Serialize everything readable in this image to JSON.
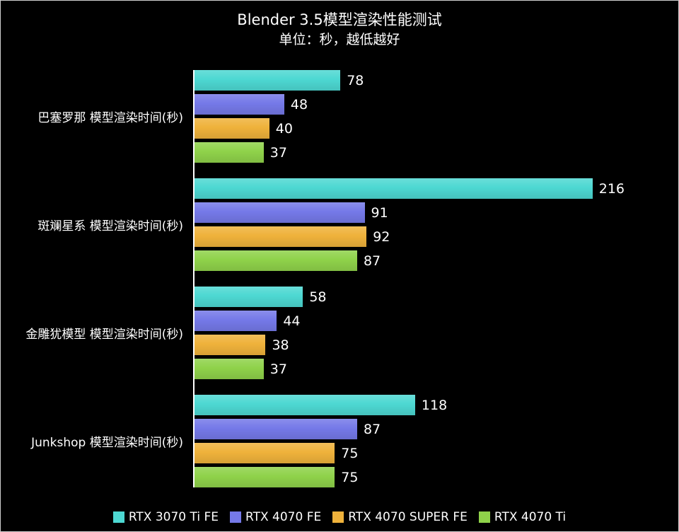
{
  "chart_data": {
    "type": "bar",
    "orientation": "horizontal",
    "title": "Blender 3.5模型渲染性能测试",
    "subtitle": "单位：秒，越低越好",
    "categories": [
      "巴塞罗那 模型渲染时间(秒)",
      "斑斓星系 模型渲染时间(秒)",
      "金雕犹模型 模型渲染时间(秒)",
      "Junkshop 模型渲染时间(秒)"
    ],
    "series": [
      {
        "name": "RTX 3070 Ti FE",
        "color": "#4dd8d2",
        "values": [
          78,
          216,
          58,
          118
        ]
      },
      {
        "name": "RTX 4070 FE",
        "color": "#7579e8",
        "values": [
          48,
          91,
          44,
          87
        ]
      },
      {
        "name": "RTX 4070 SUPER FE",
        "color": "#efb23b",
        "values": [
          40,
          92,
          38,
          75
        ]
      },
      {
        "name": "RTX 4070 Ti",
        "color": "#8fd24a",
        "values": [
          37,
          87,
          37,
          75
        ]
      }
    ],
    "xlim": [
      0,
      230
    ],
    "grid": false,
    "value_labels": true,
    "legend_position": "bottom",
    "background": "#000000",
    "text_color": "#ffffff",
    "axis_color": "#ffffff"
  }
}
